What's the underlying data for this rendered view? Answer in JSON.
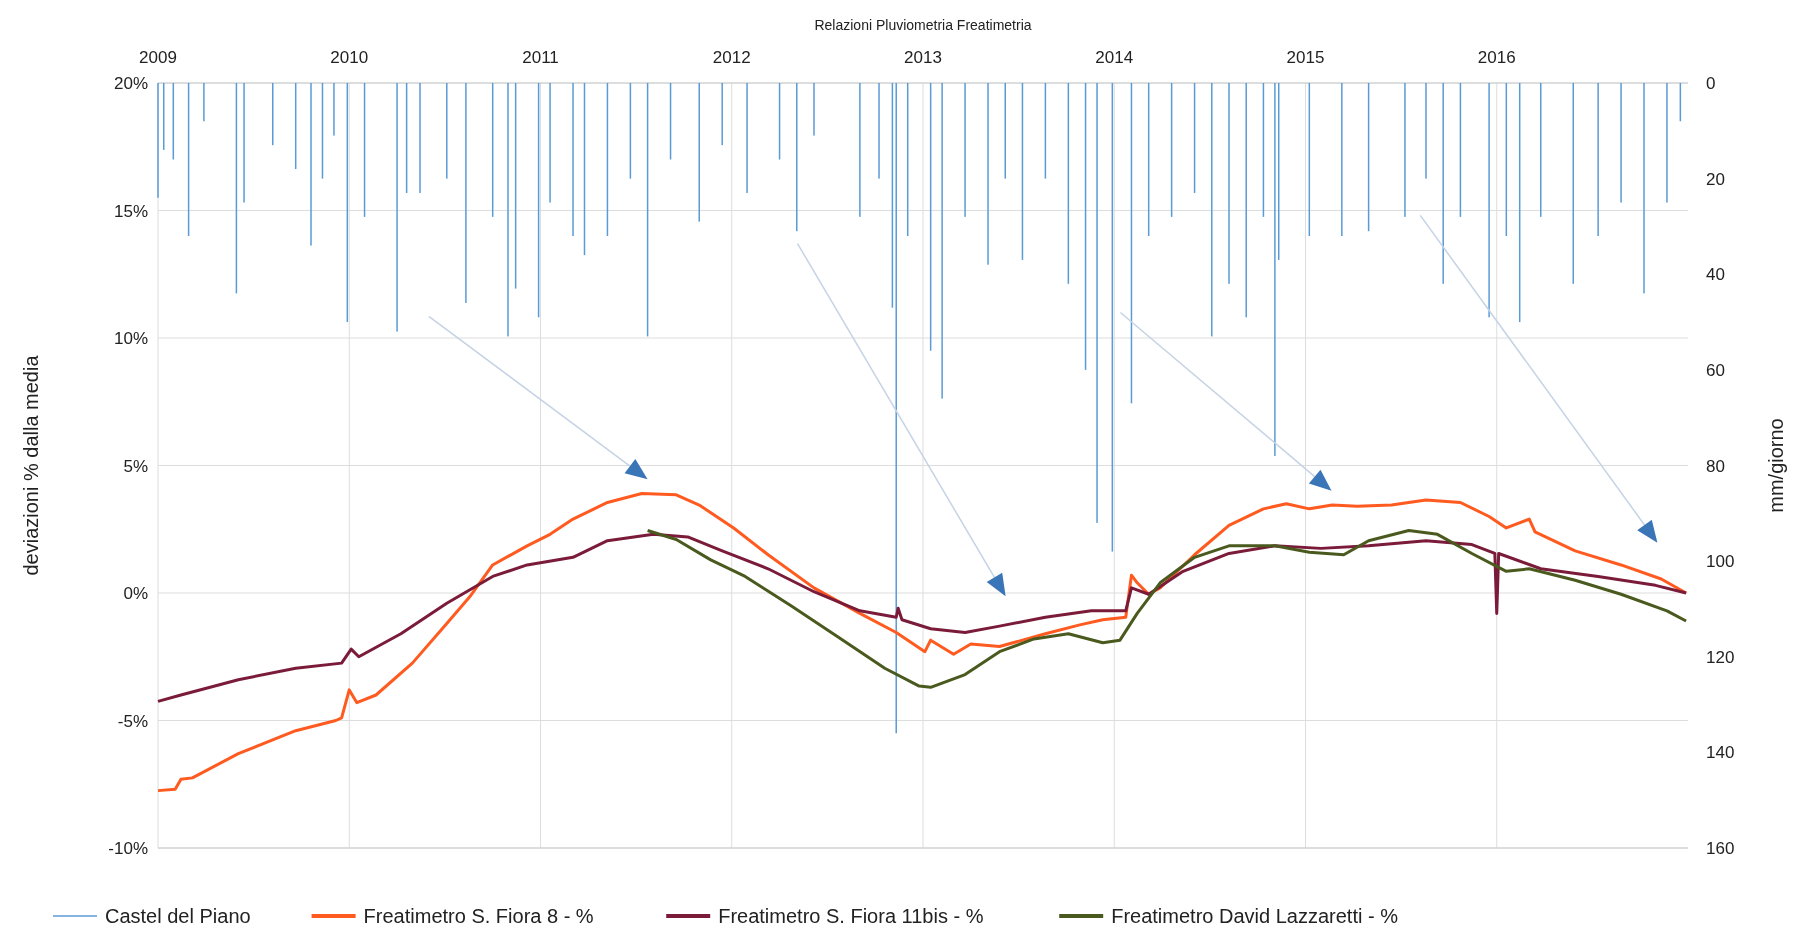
{
  "chart_data": {
    "type": "line",
    "title": "Relazioni Pluviometria Freatimetria",
    "ylabel": "deviazioni % dalla media",
    "y2label": "mm/giorno",
    "xlim": [
      2009,
      2017
    ],
    "xticks": [
      2009,
      2010,
      2011,
      2012,
      2013,
      2014,
      2015,
      2016
    ],
    "ylim": [
      -10,
      20
    ],
    "yticks": [
      {
        "value": -10,
        "label": "-10%"
      },
      {
        "value": -5,
        "label": "-5%"
      },
      {
        "value": 0,
        "label": "0%"
      },
      {
        "value": 5,
        "label": "5%"
      },
      {
        "value": 10,
        "label": "10%"
      },
      {
        "value": 15,
        "label": "15%"
      },
      {
        "value": 20,
        "label": "20%"
      }
    ],
    "y2lim": [
      160,
      0
    ],
    "y2ticks": [
      0,
      20,
      40,
      60,
      80,
      100,
      120,
      140,
      160
    ],
    "grid": true,
    "legend": "bottom",
    "series": [
      {
        "name": "Castel del Piano",
        "type": "bar",
        "axis": "y2",
        "color": "#5b9bd5",
        "x": [
          2009.0,
          2009.03,
          2009.08,
          2009.16,
          2009.24,
          2009.41,
          2009.45,
          2009.6,
          2009.72,
          2009.8,
          2009.86,
          2009.92,
          2009.99,
          2010.08,
          2010.25,
          2010.3,
          2010.37,
          2010.51,
          2010.61,
          2010.75,
          2010.83,
          2010.87,
          2010.99,
          2011.05,
          2011.17,
          2011.23,
          2011.35,
          2011.47,
          2011.56,
          2011.68,
          2011.83,
          2011.95,
          2012.08,
          2012.25,
          2012.34,
          2012.43,
          2012.67,
          2012.77,
          2012.84,
          2012.86,
          2012.92,
          2013.04,
          2013.1,
          2013.22,
          2013.34,
          2013.43,
          2013.52,
          2013.64,
          2013.76,
          2013.85,
          2013.91,
          2013.99,
          2014.09,
          2014.18,
          2014.3,
          2014.42,
          2014.51,
          2014.6,
          2014.69,
          2014.78,
          2014.84,
          2014.86,
          2015.02,
          2015.19,
          2015.33,
          2015.52,
          2015.63,
          2015.72,
          2015.81,
          2015.96,
          2016.05,
          2016.12,
          2016.23,
          2016.4,
          2016.53,
          2016.65,
          2016.77,
          2016.89,
          2016.96
        ],
        "values": [
          24,
          14,
          16,
          32,
          8,
          44,
          25,
          13,
          18,
          34,
          20,
          11,
          50,
          28,
          52,
          23,
          23,
          20,
          46,
          28,
          53,
          43,
          49,
          25,
          32,
          36,
          32,
          20,
          53,
          16,
          29,
          13,
          23,
          16,
          31,
          11,
          28,
          20,
          47,
          136,
          32,
          56,
          66,
          28,
          38,
          20,
          37,
          20,
          42,
          60,
          92,
          98,
          67,
          32,
          28,
          23,
          53,
          42,
          49,
          28,
          78,
          37,
          32,
          32,
          31,
          28,
          20,
          42,
          28,
          49,
          32,
          50,
          28,
          42,
          32,
          25,
          44,
          25,
          8
        ]
      },
      {
        "name": "Freatimetro S. Fiora 8 - %",
        "color": "#ff5a1f",
        "x": [
          2009.0,
          2009.09,
          2009.12,
          2009.18,
          2009.42,
          2009.72,
          2009.93,
          2009.96,
          2010.0,
          2010.04,
          2010.14,
          2010.33,
          2010.51,
          2010.63,
          2010.75,
          2010.93,
          2011.05,
          2011.17,
          2011.35,
          2011.53,
          2011.71,
          2011.83,
          2012.01,
          2012.19,
          2012.43,
          2012.67,
          2012.86,
          2013.01,
          2013.04,
          2013.16,
          2013.25,
          2013.4,
          2013.64,
          2013.82,
          2013.94,
          2014.06,
          2014.09,
          2014.12,
          2014.18,
          2014.24,
          2014.42,
          2014.6,
          2014.78,
          2014.9,
          2015.02,
          2015.14,
          2015.27,
          2015.45,
          2015.63,
          2015.81,
          2015.96,
          2016.05,
          2016.17,
          2016.2,
          2016.41,
          2016.65,
          2016.86,
          2016.99
        ],
        "values": [
          -7.75,
          -7.7,
          -7.3,
          -7.25,
          -6.3,
          -5.4,
          -5.0,
          -4.9,
          -3.8,
          -4.3,
          -4.0,
          -2.75,
          -1.2,
          -0.15,
          1.1,
          1.85,
          2.3,
          2.9,
          3.55,
          3.9,
          3.85,
          3.45,
          2.55,
          1.5,
          0.2,
          -0.8,
          -1.55,
          -2.3,
          -1.85,
          -2.4,
          -2.0,
          -2.1,
          -1.6,
          -1.25,
          -1.05,
          -0.95,
          0.7,
          0.4,
          -0.05,
          0.2,
          1.5,
          2.65,
          3.3,
          3.5,
          3.3,
          3.45,
          3.4,
          3.45,
          3.65,
          3.55,
          3.0,
          2.55,
          2.9,
          2.4,
          1.65,
          1.1,
          0.55,
          0.0
        ]
      },
      {
        "name": "Freatimetro S. Fiora 11bis - %",
        "color": "#7b1b3a",
        "x": [
          2009.0,
          2009.12,
          2009.42,
          2009.72,
          2009.96,
          2010.01,
          2010.05,
          2010.27,
          2010.51,
          2010.75,
          2010.93,
          2011.17,
          2011.35,
          2011.59,
          2011.77,
          2011.95,
          2012.19,
          2012.43,
          2012.67,
          2012.86,
          2012.87,
          2012.89,
          2013.04,
          2013.22,
          2013.4,
          2013.64,
          2013.88,
          2014.06,
          2014.09,
          2014.18,
          2014.36,
          2014.6,
          2014.84,
          2015.08,
          2015.33,
          2015.63,
          2015.87,
          2015.99,
          2016.0,
          2016.01,
          2016.23,
          2016.53,
          2016.83,
          2016.99
        ],
        "values": [
          -4.25,
          -4.0,
          -3.4,
          -2.95,
          -2.75,
          -2.2,
          -2.5,
          -1.6,
          -0.4,
          0.65,
          1.1,
          1.4,
          2.05,
          2.3,
          2.2,
          1.65,
          0.95,
          0.05,
          -0.7,
          -0.95,
          -0.6,
          -1.05,
          -1.4,
          -1.55,
          -1.3,
          -0.95,
          -0.7,
          -0.7,
          0.2,
          -0.05,
          0.85,
          1.55,
          1.85,
          1.75,
          1.85,
          2.05,
          1.9,
          1.55,
          -0.8,
          1.55,
          0.95,
          0.65,
          0.3,
          0.0
        ]
      },
      {
        "name": "Freatimetro David Lazzaretti - %",
        "color": "#4a5a1e",
        "x": [
          2011.56,
          2011.71,
          2011.89,
          2012.07,
          2012.31,
          2012.55,
          2012.8,
          2012.98,
          2013.04,
          2013.22,
          2013.4,
          2013.58,
          2013.76,
          2013.94,
          2014.03,
          2014.12,
          2014.24,
          2014.42,
          2014.6,
          2014.84,
          2015.02,
          2015.2,
          2015.33,
          2015.54,
          2015.69,
          2015.87,
          2016.05,
          2016.17,
          2016.41,
          2016.65,
          2016.89,
          2016.99
        ],
        "values": [
          2.45,
          2.1,
          1.3,
          0.65,
          -0.5,
          -1.7,
          -2.95,
          -3.65,
          -3.7,
          -3.2,
          -2.3,
          -1.8,
          -1.6,
          -1.95,
          -1.85,
          -0.8,
          0.4,
          1.4,
          1.85,
          1.85,
          1.6,
          1.5,
          2.05,
          2.45,
          2.3,
          1.55,
          0.85,
          0.95,
          0.5,
          -0.05,
          -0.7,
          -1.1
        ]
      }
    ]
  }
}
